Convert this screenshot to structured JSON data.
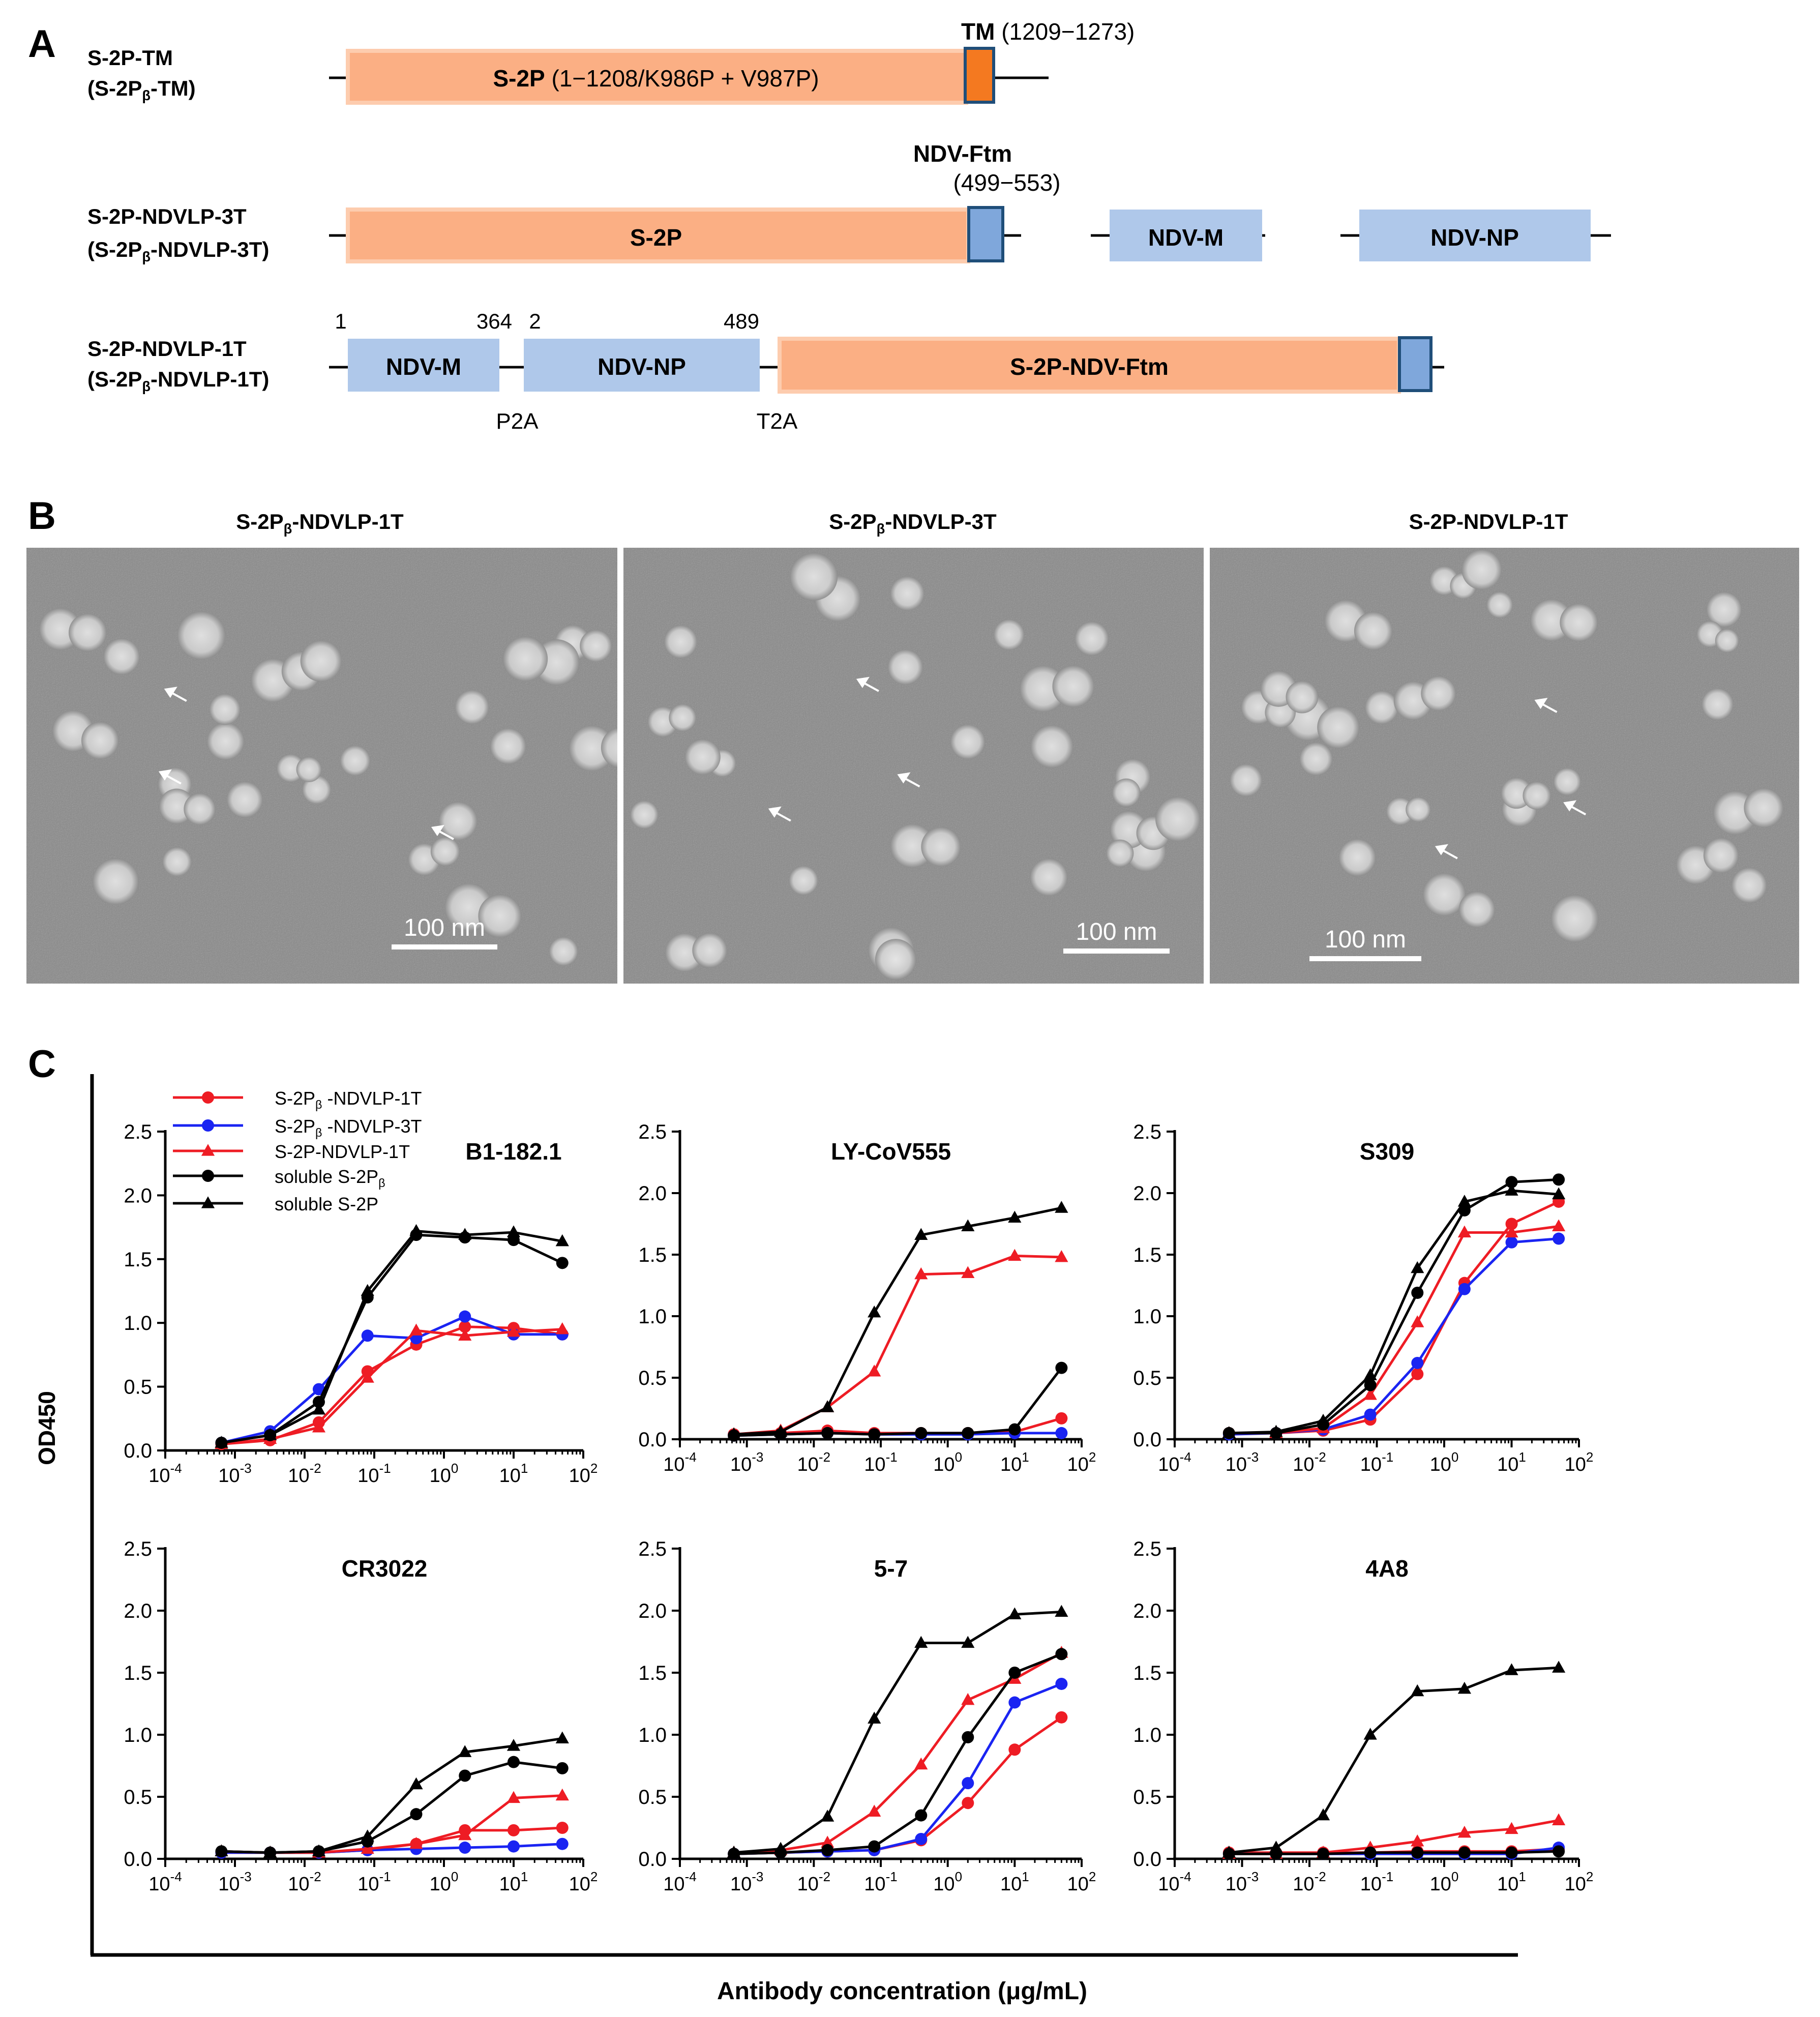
{
  "panel_a": {
    "letter": "A",
    "constructs": [
      {
        "name_line1": "S-2P-TM",
        "name_line2_pre": "(S-2P",
        "name_line2_sub": "β",
        "name_line2_post": "-TM)",
        "segments": [
          {
            "bold": "S-2P",
            "text": " (1−1208/K986P + V987P)",
            "color": "#FBAF84"
          },
          {
            "bold": "",
            "text": "",
            "color": "#F47920"
          }
        ],
        "anchor_bold": "TM",
        "anchor_text": " (1209−1273)"
      },
      {
        "name_line1": "S-2P-NDVLP-3T",
        "name_line2_pre": "(S-2P",
        "name_line2_sub": "β",
        "name_line2_post": "-NDVLP-3T)",
        "segments": [
          {
            "bold": "S-2P",
            "text": "",
            "color": "#FBAF84"
          },
          {
            "bold": "",
            "text": "",
            "color": "#7FA7DB"
          },
          {
            "bold": "NDV-M",
            "text": "",
            "color": "#AFC8EA"
          },
          {
            "bold": "NDV-NP",
            "text": "",
            "color": "#AFC8EA"
          }
        ],
        "anchor_bold": "NDV-Ftm",
        "anchor_text": "(499−553)"
      },
      {
        "name_line1": "S-2P-NDVLP-1T",
        "name_line2_pre": "(S-2P",
        "name_line2_sub": "β",
        "name_line2_post": "-NDVLP-1T)",
        "segments": [
          {
            "bold": "NDV-M",
            "text": "",
            "color": "#AFC8EA"
          },
          {
            "bold": "NDV-NP",
            "text": "",
            "color": "#AFC8EA"
          },
          {
            "bold": "S-2P-NDV-Ftm",
            "text": "",
            "color": "#FBAF84"
          },
          {
            "bold": "",
            "text": "",
            "color": "#7FA7DB"
          }
        ],
        "numbers": [
          "1",
          "364",
          "2",
          "489"
        ],
        "linkers": [
          "P2A",
          "T2A"
        ]
      }
    ]
  },
  "panel_b": {
    "letter": "B",
    "images": [
      {
        "title_pre": "S-2P",
        "title_sub": "β",
        "title_post": "-NDVLP-1T",
        "scale_label": "100 nm"
      },
      {
        "title_pre": "S-2P",
        "title_sub": "β",
        "title_post": "-NDVLP-3T",
        "scale_label": "100 nm"
      },
      {
        "title_pre": "S-2P-NDVLP-1T",
        "title_sub": "",
        "title_post": "",
        "scale_label": "100 nm"
      }
    ]
  },
  "panel_c": {
    "letter": "C",
    "ylabel": "OD450",
    "xlabel": "Antibody concentration (μg/mL)",
    "legend": [
      {
        "pre": "S-2P",
        "sub": "β",
        "post": " -NDVLP-1T",
        "color": "#EE1C24",
        "marker": "circle"
      },
      {
        "pre": "S-2P",
        "sub": "β",
        "post": " -NDVLP-3T",
        "color": "#1A24F2",
        "marker": "circle"
      },
      {
        "pre": "S-2P-NDVLP-1T",
        "sub": "",
        "post": "",
        "color": "#EE1C24",
        "marker": "triangle"
      },
      {
        "pre": "soluble S-2P",
        "sub": "β",
        "post": "",
        "color": "#000000",
        "marker": "circle"
      },
      {
        "pre": "soluble S-2P",
        "sub": "",
        "post": "",
        "color": "#000000",
        "marker": "triangle"
      }
    ]
  },
  "chart_data": [
    {
      "type": "line",
      "title": "B1-182.1",
      "xlabel": "Antibody concentration (μg/mL)",
      "ylabel": "OD450",
      "xscale": "log",
      "xlim": [
        0.0001,
        100
      ],
      "ylim": [
        0,
        2.5
      ],
      "x": [
        0.00064,
        0.0032,
        0.016,
        0.08,
        0.4,
        2,
        10,
        50
      ],
      "yticks": [
        "0.0",
        "0.5",
        "1.0",
        "1.5",
        "2.0",
        "2.5"
      ],
      "xtick_exponents": [
        "-4",
        "-3",
        "-2",
        "-1",
        "0",
        "1",
        "2"
      ],
      "series": [
        {
          "name": "S-2Pβ-NDVLP-1T",
          "marker": "circle",
          "color": "#EE1C24",
          "values": [
            0.05,
            0.08,
            0.22,
            0.62,
            0.83,
            0.97,
            0.96,
            0.91
          ]
        },
        {
          "name": "S-2Pβ-NDVLP-3T",
          "marker": "circle",
          "color": "#1A24F2",
          "values": [
            0.06,
            0.15,
            0.48,
            0.9,
            0.88,
            1.05,
            0.91,
            0.91
          ]
        },
        {
          "name": "S-2P-NDVLP-1T",
          "marker": "triangle",
          "color": "#EE1C24",
          "values": [
            0.05,
            0.09,
            0.18,
            0.57,
            0.94,
            0.9,
            0.93,
            0.95
          ]
        },
        {
          "name": "soluble S-2Pβ",
          "marker": "circle",
          "color": "#000000",
          "values": [
            0.06,
            0.12,
            0.38,
            1.2,
            1.69,
            1.67,
            1.65,
            1.47
          ]
        },
        {
          "name": "soluble S-2P",
          "marker": "triangle",
          "color": "#000000",
          "values": [
            0.06,
            0.12,
            0.32,
            1.25,
            1.72,
            1.69,
            1.71,
            1.64
          ]
        }
      ]
    },
    {
      "type": "line",
      "title": "LY-CoV555",
      "xlabel": "Antibody concentration (μg/mL)",
      "ylabel": "OD450",
      "xscale": "log",
      "xlim": [
        0.0001,
        100
      ],
      "ylim": [
        0,
        2.5
      ],
      "x": [
        0.00064,
        0.0032,
        0.016,
        0.08,
        0.4,
        2,
        10,
        50
      ],
      "yticks": [
        "0.0",
        "0.5",
        "1.0",
        "1.5",
        "2.0",
        "2.5"
      ],
      "xtick_exponents": [
        "-4",
        "-3",
        "-2",
        "-1",
        "0",
        "1",
        "2"
      ],
      "series": [
        {
          "name": "S-2Pβ-NDVLP-1T",
          "marker": "circle",
          "color": "#EE1C24",
          "values": [
            0.04,
            0.05,
            0.07,
            0.05,
            0.05,
            0.05,
            0.06,
            0.17
          ]
        },
        {
          "name": "S-2Pβ-NDVLP-3T",
          "marker": "circle",
          "color": "#1A24F2",
          "values": [
            0.03,
            0.04,
            0.05,
            0.04,
            0.04,
            0.04,
            0.05,
            0.05
          ]
        },
        {
          "name": "S-2P-NDVLP-1T",
          "marker": "triangle",
          "color": "#EE1C24",
          "values": [
            0.04,
            0.07,
            0.26,
            0.55,
            1.34,
            1.35,
            1.49,
            1.48
          ]
        },
        {
          "name": "soluble S-2Pβ",
          "marker": "circle",
          "color": "#000000",
          "values": [
            0.03,
            0.04,
            0.05,
            0.04,
            0.05,
            0.05,
            0.08,
            0.58
          ]
        },
        {
          "name": "soluble S-2P",
          "marker": "triangle",
          "color": "#000000",
          "values": [
            0.04,
            0.06,
            0.26,
            1.03,
            1.66,
            1.73,
            1.8,
            1.88
          ]
        }
      ]
    },
    {
      "type": "line",
      "title": "S309",
      "xlabel": "Antibody concentration (μg/mL)",
      "ylabel": "OD450",
      "xscale": "log",
      "xlim": [
        0.0001,
        100
      ],
      "ylim": [
        0,
        2.5
      ],
      "x": [
        0.00064,
        0.0032,
        0.016,
        0.08,
        0.4,
        2,
        10,
        50
      ],
      "yticks": [
        "0.0",
        "0.5",
        "1.0",
        "1.5",
        "2.0",
        "2.5"
      ],
      "xtick_exponents": [
        "-4",
        "-3",
        "-2",
        "-1",
        "0",
        "1",
        "2"
      ],
      "series": [
        {
          "name": "S-2Pβ-NDVLP-1T",
          "marker": "circle",
          "color": "#EE1C24",
          "values": [
            0.05,
            0.05,
            0.07,
            0.16,
            0.53,
            1.27,
            1.75,
            1.93
          ]
        },
        {
          "name": "S-2Pβ-NDVLP-3T",
          "marker": "circle",
          "color": "#1A24F2",
          "values": [
            0.04,
            0.05,
            0.08,
            0.2,
            0.62,
            1.22,
            1.6,
            1.63
          ]
        },
        {
          "name": "S-2P-NDVLP-1T",
          "marker": "triangle",
          "color": "#EE1C24",
          "values": [
            0.05,
            0.05,
            0.09,
            0.36,
            0.95,
            1.68,
            1.68,
            1.73
          ]
        },
        {
          "name": "soluble S-2Pβ",
          "marker": "circle",
          "color": "#000000",
          "values": [
            0.05,
            0.05,
            0.12,
            0.44,
            1.19,
            1.86,
            2.09,
            2.11
          ]
        },
        {
          "name": "soluble S-2P",
          "marker": "triangle",
          "color": "#000000",
          "values": [
            0.05,
            0.06,
            0.15,
            0.52,
            1.39,
            1.93,
            2.02,
            1.99
          ]
        }
      ]
    },
    {
      "type": "line",
      "title": "CR3022",
      "xlabel": "Antibody concentration (μg/mL)",
      "ylabel": "OD450",
      "xscale": "log",
      "xlim": [
        0.0001,
        100
      ],
      "ylim": [
        0,
        2.5
      ],
      "x": [
        0.00064,
        0.0032,
        0.016,
        0.08,
        0.4,
        2,
        10,
        50
      ],
      "yticks": [
        "0.0",
        "0.5",
        "1.0",
        "1.5",
        "2.0",
        "2.5"
      ],
      "xtick_exponents": [
        "-4",
        "-3",
        "-2",
        "-1",
        "0",
        "1",
        "2"
      ],
      "series": [
        {
          "name": "S-2Pβ-NDVLP-1T",
          "marker": "circle",
          "color": "#EE1C24",
          "values": [
            0.05,
            0.05,
            0.05,
            0.07,
            0.12,
            0.23,
            0.23,
            0.25
          ]
        },
        {
          "name": "S-2Pβ-NDVLP-3T",
          "marker": "circle",
          "color": "#1A24F2",
          "values": [
            0.05,
            0.05,
            0.05,
            0.07,
            0.08,
            0.09,
            0.1,
            0.12
          ]
        },
        {
          "name": "S-2P-NDVLP-1T",
          "marker": "triangle",
          "color": "#EE1C24",
          "values": [
            0.06,
            0.05,
            0.05,
            0.08,
            0.12,
            0.19,
            0.49,
            0.51
          ]
        },
        {
          "name": "soluble S-2Pβ",
          "marker": "circle",
          "color": "#000000",
          "values": [
            0.06,
            0.05,
            0.06,
            0.14,
            0.36,
            0.67,
            0.78,
            0.73
          ]
        },
        {
          "name": "soluble S-2P",
          "marker": "triangle",
          "color": "#000000",
          "values": [
            0.06,
            0.05,
            0.06,
            0.18,
            0.6,
            0.86,
            0.91,
            0.97
          ]
        }
      ]
    },
    {
      "type": "line",
      "title": "5-7",
      "xlabel": "Antibody concentration (μg/mL)",
      "ylabel": "OD450",
      "xscale": "log",
      "xlim": [
        0.0001,
        100
      ],
      "ylim": [
        0,
        2.5
      ],
      "x": [
        0.00064,
        0.0032,
        0.016,
        0.08,
        0.4,
        2,
        10,
        50
      ],
      "yticks": [
        "0.0",
        "0.5",
        "1.0",
        "1.5",
        "2.0",
        "2.5"
      ],
      "xtick_exponents": [
        "-4",
        "-3",
        "-2",
        "-1",
        "0",
        "1",
        "2"
      ],
      "series": [
        {
          "name": "S-2Pβ-NDVLP-1T",
          "marker": "circle",
          "color": "#EE1C24",
          "values": [
            0.04,
            0.05,
            0.06,
            0.07,
            0.15,
            0.45,
            0.88,
            1.14
          ]
        },
        {
          "name": "S-2Pβ-NDVLP-3T",
          "marker": "circle",
          "color": "#1A24F2",
          "values": [
            0.04,
            0.05,
            0.06,
            0.07,
            0.16,
            0.61,
            1.26,
            1.41
          ]
        },
        {
          "name": "S-2P-NDVLP-1T",
          "marker": "triangle",
          "color": "#EE1C24",
          "values": [
            0.05,
            0.07,
            0.13,
            0.38,
            0.76,
            1.28,
            1.45,
            1.66
          ]
        },
        {
          "name": "soluble S-2Pβ",
          "marker": "circle",
          "color": "#000000",
          "values": [
            0.04,
            0.05,
            0.07,
            0.1,
            0.35,
            0.98,
            1.5,
            1.65
          ]
        },
        {
          "name": "soluble S-2P",
          "marker": "triangle",
          "color": "#000000",
          "values": [
            0.05,
            0.08,
            0.34,
            1.13,
            1.74,
            1.74,
            1.97,
            1.99
          ]
        }
      ]
    },
    {
      "type": "line",
      "title": "4A8",
      "xlabel": "Antibody concentration (μg/mL)",
      "ylabel": "OD450",
      "xscale": "log",
      "xlim": [
        0.0001,
        100
      ],
      "ylim": [
        0,
        2.5
      ],
      "x": [
        0.00064,
        0.0032,
        0.016,
        0.08,
        0.4,
        2,
        10,
        50
      ],
      "yticks": [
        "0.0",
        "0.5",
        "1.0",
        "1.5",
        "2.0",
        "2.5"
      ],
      "xtick_exponents": [
        "-4",
        "-3",
        "-2",
        "-1",
        "0",
        "1",
        "2"
      ],
      "series": [
        {
          "name": "S-2Pβ-NDVLP-1T",
          "marker": "circle",
          "color": "#EE1C24",
          "values": [
            0.05,
            0.05,
            0.05,
            0.05,
            0.06,
            0.06,
            0.06,
            0.08
          ]
        },
        {
          "name": "S-2Pβ-NDVLP-3T",
          "marker": "circle",
          "color": "#1A24F2",
          "values": [
            0.04,
            0.04,
            0.04,
            0.04,
            0.04,
            0.04,
            0.04,
            0.09
          ]
        },
        {
          "name": "S-2P-NDVLP-1T",
          "marker": "triangle",
          "color": "#EE1C24",
          "values": [
            0.04,
            0.04,
            0.05,
            0.09,
            0.14,
            0.21,
            0.24,
            0.31
          ]
        },
        {
          "name": "soluble S-2Pβ",
          "marker": "circle",
          "color": "#000000",
          "values": [
            0.04,
            0.04,
            0.04,
            0.05,
            0.05,
            0.05,
            0.05,
            0.06
          ]
        },
        {
          "name": "soluble S-2P",
          "marker": "triangle",
          "color": "#000000",
          "values": [
            0.05,
            0.09,
            0.35,
            1.0,
            1.35,
            1.37,
            1.52,
            1.54
          ]
        }
      ]
    }
  ]
}
